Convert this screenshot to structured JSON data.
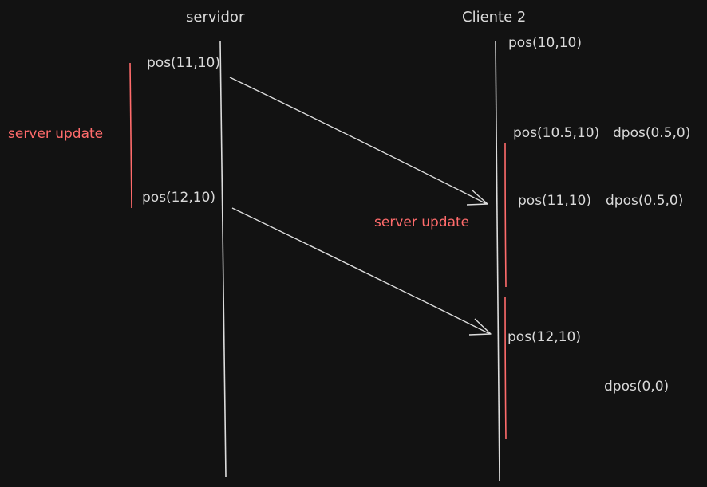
{
  "colors": {
    "background": "#121212",
    "line": "#dcdcdc",
    "accent": "#ff6b6b"
  },
  "lanes": {
    "server_title": "servidor",
    "client_title": "Cliente 2"
  },
  "server_events": {
    "pos1": "pos(11,10)",
    "pos2": "pos(12,10)",
    "update_label": "server update"
  },
  "client_events": {
    "pos_initial": "pos(10,10)",
    "pos_interp": "pos(10.5,10)",
    "dpos_interp": "dpos(0.5,0)",
    "pos_after_update": "pos(11,10)",
    "dpos_after_update": "dpos(0.5,0)",
    "update_label": "server update",
    "pos_final": "pos(12,10)",
    "dpos_final": "dpos(0,0)"
  }
}
